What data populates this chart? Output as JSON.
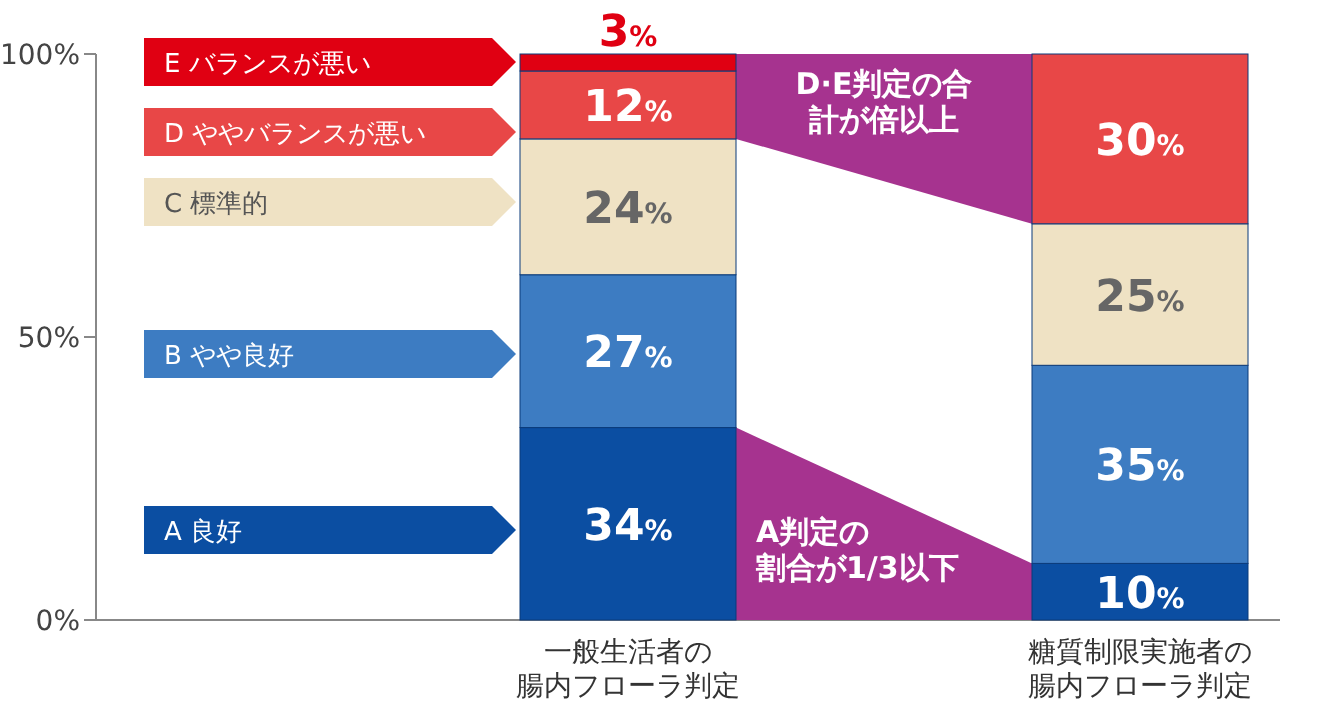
{
  "chart_data": {
    "type": "bar",
    "stacked": true,
    "categories": [
      "一般生活者の腸内フローラ判定",
      "糖質制限実施者の腸内フローラ判定"
    ],
    "series": [
      {
        "name": "A 良好",
        "color": "#0b4ea2",
        "values": [
          34,
          10
        ],
        "value_labels": [
          "34%",
          "10%"
        ]
      },
      {
        "name": "B やや良好",
        "color": "#3d7cc2",
        "values": [
          27,
          35
        ],
        "value_labels": [
          "27%",
          "35%"
        ]
      },
      {
        "name": "C 標準的",
        "color": "#efe2c4",
        "values": [
          24,
          25
        ],
        "value_labels": [
          "24%",
          "25%"
        ]
      },
      {
        "name": "D ややバランスが悪い",
        "color": "#e84747",
        "values": [
          12,
          30
        ],
        "value_labels": [
          "12%",
          "30%"
        ]
      },
      {
        "name": "E バランスが悪い",
        "color": "#e00012",
        "values": [
          3,
          null
        ],
        "value_labels": [
          "3%",
          null
        ]
      }
    ],
    "ylim": [
      0,
      100
    ],
    "yticks": [
      {
        "value": 0,
        "label": "0%"
      },
      {
        "value": 50,
        "label": "50%"
      },
      {
        "value": 100,
        "label": "100%"
      }
    ],
    "legend": "left",
    "annotations": [
      "D·E判定の合計が倍以上",
      "A判定の割合が1/3以下"
    ]
  }
}
